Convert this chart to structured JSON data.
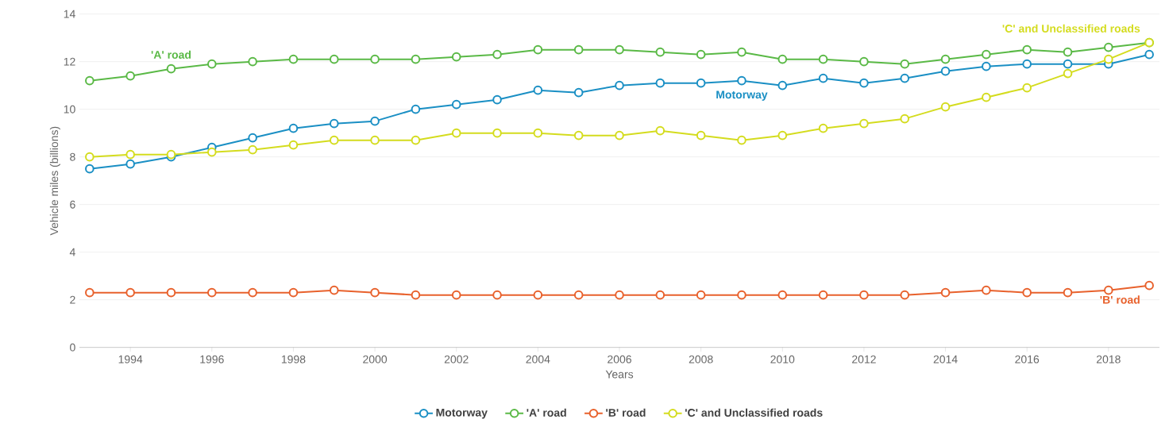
{
  "chart_data": {
    "type": "line",
    "xlabel": "Years",
    "ylabel": "Vehicle miles (billions)",
    "x": [
      1993,
      1994,
      1995,
      1996,
      1997,
      1998,
      1999,
      2000,
      2001,
      2002,
      2003,
      2004,
      2005,
      2006,
      2007,
      2008,
      2009,
      2010,
      2011,
      2012,
      2013,
      2014,
      2015,
      2016,
      2017,
      2018,
      2019
    ],
    "series": [
      {
        "name": "Motorway",
        "color": "#1a8fc4",
        "values": [
          7.5,
          7.7,
          8.0,
          8.4,
          8.8,
          9.2,
          9.4,
          9.5,
          10.0,
          10.2,
          10.4,
          10.8,
          10.7,
          11.0,
          11.1,
          11.1,
          11.2,
          11.0,
          11.3,
          11.1,
          11.3,
          11.6,
          11.8,
          11.9,
          11.9,
          11.9,
          12.3
        ]
      },
      {
        "name": "'A' road",
        "color": "#5ab946",
        "values": [
          11.2,
          11.4,
          11.7,
          11.9,
          12.0,
          12.1,
          12.1,
          12.1,
          12.1,
          12.2,
          12.3,
          12.5,
          12.5,
          12.5,
          12.4,
          12.3,
          12.4,
          12.1,
          12.1,
          12.0,
          11.9,
          12.1,
          12.3,
          12.5,
          12.4,
          12.6,
          12.8
        ]
      },
      {
        "name": "'B' road",
        "color": "#e8612c",
        "values": [
          2.3,
          2.3,
          2.3,
          2.3,
          2.3,
          2.3,
          2.4,
          2.3,
          2.2,
          2.2,
          2.2,
          2.2,
          2.2,
          2.2,
          2.2,
          2.2,
          2.2,
          2.2,
          2.2,
          2.2,
          2.2,
          2.3,
          2.4,
          2.3,
          2.3,
          2.4,
          2.6
        ]
      },
      {
        "name": "'C' and Unclassified roads",
        "color": "#d4dc1e",
        "values": [
          8.0,
          8.1,
          8.1,
          8.2,
          8.3,
          8.5,
          8.7,
          8.7,
          8.7,
          9.0,
          9.0,
          9.0,
          8.9,
          8.9,
          9.1,
          8.9,
          8.7,
          8.9,
          9.2,
          9.4,
          9.6,
          10.1,
          10.5,
          10.9,
          11.5,
          12.1,
          12.8
        ]
      }
    ],
    "xlim": [
      1992.75,
      2019.25
    ],
    "xticks": [
      1994,
      1996,
      1998,
      2000,
      2002,
      2004,
      2006,
      2008,
      2010,
      2012,
      2014,
      2016,
      2018
    ],
    "ylim": [
      0,
      14
    ],
    "yticks": [
      0,
      2,
      4,
      6,
      8,
      10,
      12,
      14
    ],
    "grid": "y",
    "legend": "bottom",
    "marker": "circle",
    "line_style": "solid"
  }
}
